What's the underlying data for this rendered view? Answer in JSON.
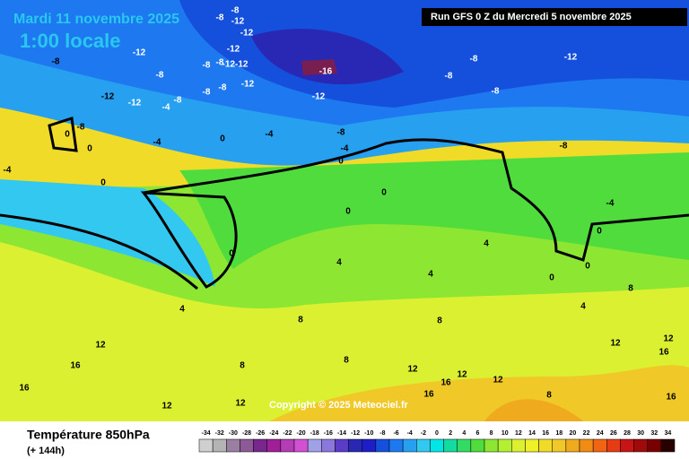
{
  "header": {
    "date": "Mardi 11 novembre 2025",
    "time": "1:00 locale",
    "run": "Run GFS 0 Z du Mercredi 5 novembre 2025"
  },
  "footer": {
    "title": "Température 850hPa",
    "subtitle": "(+ 144h)",
    "copyright": "Copyright © 2025 Meteociel.fr"
  },
  "map": {
    "labels": [
      "-8",
      "-8",
      "-12",
      "-12",
      "-12",
      "-8",
      "-12",
      "-12-12",
      "-8",
      "-8",
      "-8",
      "-12",
      "-12",
      "-8",
      "-4",
      "-8",
      "-8",
      "-12",
      "-16",
      "-12",
      "-8",
      "-8",
      "-8",
      "-12",
      "-8",
      "-4",
      "0",
      "-4",
      "0",
      "-4",
      "-8",
      "0",
      "0",
      "-4",
      "0",
      "0",
      "0",
      "0",
      "4",
      "4",
      "4",
      "4",
      "0",
      "0",
      "-4",
      "-8",
      "0",
      "4",
      "8",
      "8",
      "8",
      "8",
      "8",
      "8",
      "12",
      "16",
      "16",
      "12",
      "12",
      "12",
      "12",
      "12",
      "16",
      "16",
      "12",
      "16",
      "16",
      "12"
    ]
  },
  "legend": {
    "values": [
      -34,
      -32,
      -30,
      -28,
      -26,
      -24,
      -22,
      -20,
      -18,
      -16,
      -14,
      -12,
      -10,
      -8,
      -6,
      -4,
      -2,
      0,
      2,
      4,
      6,
      8,
      10,
      12,
      14,
      16,
      18,
      20,
      22,
      24,
      26,
      28,
      30,
      32,
      34
    ],
    "colors": [
      "#d0d0d0",
      "#b4b4b4",
      "#9b7fa0",
      "#8c5a96",
      "#78288c",
      "#a01e96",
      "#b43cb4",
      "#d250d2",
      "#a0a0e6",
      "#8c78dc",
      "#5a3cc8",
      "#2828b4",
      "#1e1ec8",
      "#1450dc",
      "#1e78f0",
      "#28a0f0",
      "#32c8f0",
      "#00e6e6",
      "#14dca0",
      "#32dc64",
      "#50dc3c",
      "#8ce632",
      "#b4f032",
      "#dcf032",
      "#f0f028",
      "#f0dc28",
      "#f0c828",
      "#f0aa1e",
      "#f08c14",
      "#f06414",
      "#e63c14",
      "#c81414",
      "#a00a0a",
      "#780000",
      "#280000"
    ]
  }
}
